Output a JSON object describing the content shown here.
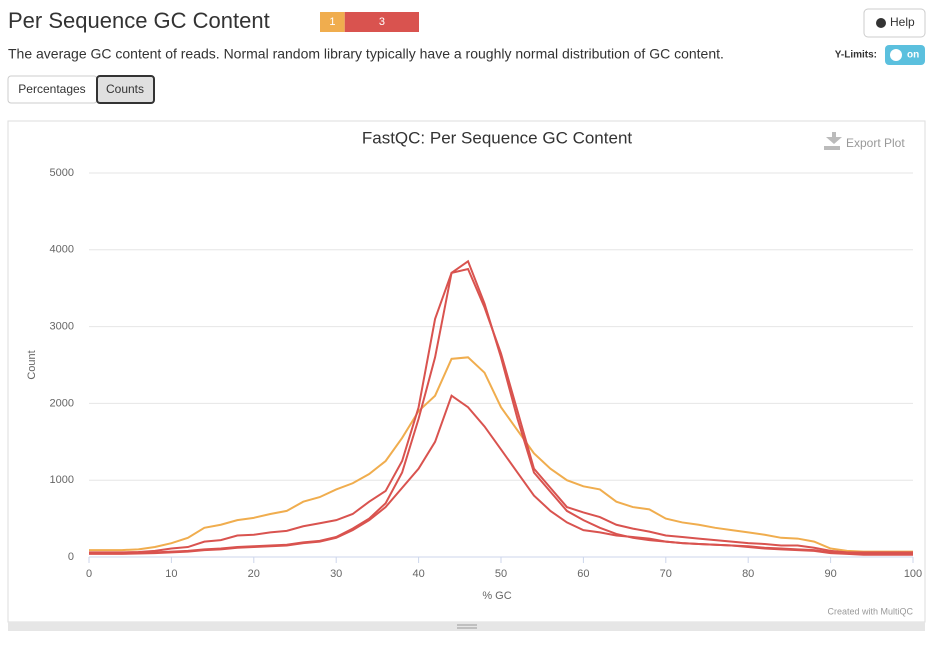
{
  "header": {
    "title": "Per Sequence GC Content",
    "badges": [
      {
        "value": 1,
        "color": "#f0ad4e"
      },
      {
        "value": 3,
        "color": "#d9534f"
      }
    ],
    "help": "Help",
    "description": "The average GC content of reads. Normal random library typically have a roughly normal distribution of GC content.",
    "ylimits_label": "Y-Limits:",
    "toggle": "on"
  },
  "buttons": [
    "Percentages",
    "Counts"
  ],
  "chart_data": {
    "type": "line",
    "title": "FastQC: Per Sequence GC Content",
    "export": "Export Plot",
    "credit": "Created with MultiQC",
    "xlabel": "% GC",
    "ylabel": "Count",
    "x": [
      0,
      2,
      4,
      6,
      8,
      10,
      12,
      14,
      16,
      18,
      20,
      22,
      24,
      26,
      28,
      30,
      32,
      34,
      36,
      38,
      40,
      42,
      44,
      46,
      48,
      50,
      52,
      54,
      56,
      58,
      60,
      62,
      64,
      66,
      68,
      70,
      72,
      74,
      76,
      78,
      80,
      82,
      84,
      86,
      88,
      90,
      92,
      94,
      96,
      98,
      100
    ],
    "xlim": [
      0,
      100
    ],
    "xticks": [
      0,
      10,
      20,
      30,
      40,
      50,
      60,
      70,
      80,
      90,
      100
    ],
    "ylim": [
      0,
      5000
    ],
    "yticks": [
      0,
      1000,
      2000,
      3000,
      4000,
      5000
    ],
    "grid": true,
    "series": [
      {
        "color": "#f0ad4e",
        "values": [
          90,
          90,
          90,
          100,
          130,
          180,
          250,
          380,
          420,
          480,
          510,
          560,
          600,
          720,
          780,
          880,
          960,
          1080,
          1250,
          1550,
          1900,
          2100,
          2580,
          2600,
          2400,
          1950,
          1650,
          1350,
          1150,
          1000,
          920,
          880,
          720,
          650,
          620,
          500,
          450,
          420,
          380,
          350,
          320,
          290,
          250,
          240,
          200,
          110,
          80,
          70,
          70,
          70,
          70
        ]
      },
      {
        "color": "#d9534f",
        "values": [
          50,
          50,
          50,
          55,
          60,
          70,
          80,
          100,
          110,
          130,
          140,
          150,
          160,
          190,
          210,
          260,
          370,
          500,
          700,
          1100,
          1800,
          2600,
          3700,
          3850,
          3300,
          2600,
          1800,
          1100,
          850,
          600,
          480,
          380,
          300,
          250,
          220,
          200,
          180,
          170,
          160,
          150,
          140,
          120,
          110,
          100,
          90,
          60,
          50,
          40,
          40,
          40,
          40
        ]
      },
      {
        "color": "#d9534f",
        "values": [
          60,
          60,
          60,
          65,
          80,
          110,
          130,
          200,
          220,
          280,
          290,
          320,
          340,
          400,
          440,
          480,
          560,
          720,
          860,
          1250,
          1950,
          3100,
          3700,
          3750,
          3250,
          2650,
          1900,
          1150,
          900,
          650,
          580,
          520,
          420,
          370,
          330,
          280,
          260,
          240,
          220,
          200,
          180,
          170,
          150,
          150,
          120,
          80,
          60,
          60,
          60,
          60,
          60
        ]
      },
      {
        "color": "#d9534f",
        "values": [
          40,
          40,
          40,
          45,
          50,
          60,
          70,
          90,
          100,
          120,
          130,
          140,
          150,
          180,
          200,
          250,
          350,
          480,
          650,
          900,
          1150,
          1500,
          2100,
          1950,
          1700,
          1400,
          1100,
          800,
          600,
          450,
          350,
          320,
          280,
          260,
          240,
          200,
          180,
          170,
          160,
          150,
          130,
          110,
          100,
          90,
          80,
          50,
          40,
          30,
          30,
          30,
          30
        ]
      }
    ]
  }
}
